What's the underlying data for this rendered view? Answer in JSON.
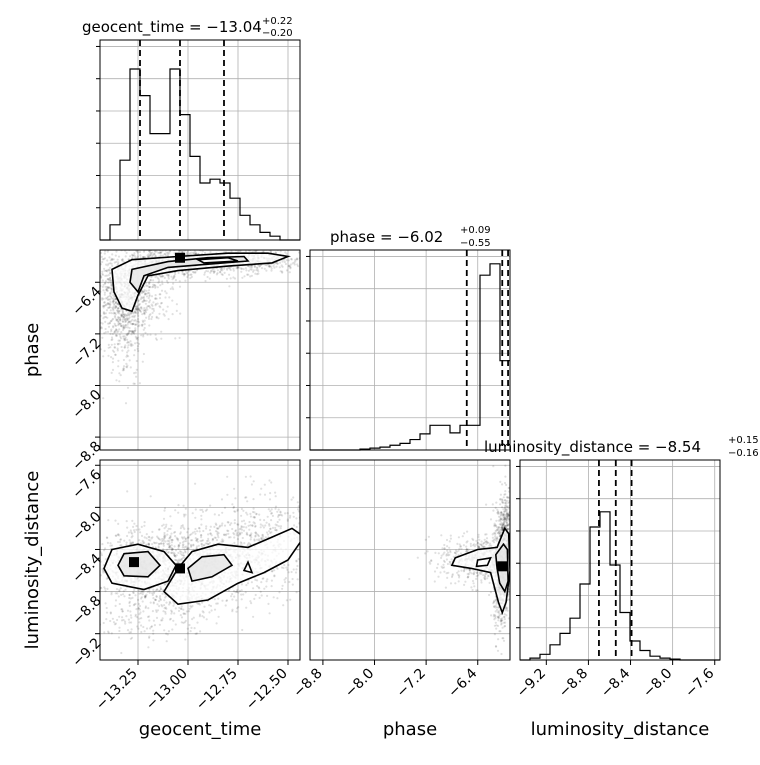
{
  "chart_data": {
    "type": "corner",
    "grid": true,
    "parameters": [
      "geocent_time",
      "phase",
      "luminosity_distance"
    ],
    "titles": [
      {
        "param": "geocent_time",
        "text": "geocent_time = −13.04",
        "sup": "+0.22",
        "sub": "−0.20"
      },
      {
        "param": "phase",
        "text": "phase = −6.02",
        "sup": "+0.09",
        "sub": "−0.55"
      },
      {
        "param": "luminosity_distance",
        "text": "luminosity_distance = −8.54",
        "sup": "+0.15",
        "sub": "−0.16"
      }
    ],
    "ranges": {
      "geocent_time": [
        -13.44,
        -12.44
      ],
      "phase": [
        -9.0,
        -5.9
      ],
      "luminosity_distance": [
        -9.45,
        -7.55
      ]
    },
    "ticks": {
      "geocent_time": {
        "values": [
          -13.25,
          -13.0,
          -12.75,
          -12.5
        ],
        "labels": [
          "−13.25",
          "−13.00",
          "−12.75",
          "−12.50"
        ]
      },
      "phase": {
        "values": [
          -8.8,
          -8.0,
          -7.2,
          -6.4
        ],
        "labels": [
          "−8.8",
          "−8.0",
          "−7.2",
          "−6.4"
        ]
      },
      "luminosity_distance": {
        "values": [
          -9.2,
          -8.8,
          -8.4,
          -8.0,
          -7.6
        ],
        "labels": [
          "−9.2",
          "−8.8",
          "−8.4",
          "−8.0",
          "−7.6"
        ]
      }
    },
    "quantiles": {
      "geocent_time": [
        -13.24,
        -13.04,
        -12.82
      ],
      "phase": [
        -6.57,
        -6.02,
        -5.93
      ],
      "luminosity_distance": [
        -8.7,
        -8.54,
        -8.39
      ]
    },
    "histograms": {
      "geocent_time": {
        "edges_start": -13.44,
        "bin_width": 0.05,
        "counts": [
          0,
          0.08,
          0.42,
          0.9,
          0.76,
          0.56,
          0.56,
          0.9,
          0.66,
          0.44,
          0.3,
          0.32,
          0.3,
          0.22,
          0.13,
          0.08,
          0.04,
          0.02,
          0,
          0
        ]
      },
      "phase": {
        "edges_start": -9.0,
        "bin_width": 0.155,
        "counts": [
          0,
          0,
          0,
          0,
          0,
          0.005,
          0.01,
          0.015,
          0.025,
          0.035,
          0.055,
          0.085,
          0.13,
          0.13,
          0.09,
          0.13,
          0.13,
          0.92,
          0.98,
          0.47
        ]
      },
      "luminosity_distance": {
        "edges_start": -9.45,
        "bin_width": 0.095,
        "counts": [
          0,
          0.01,
          0.03,
          0.08,
          0.14,
          0.22,
          0.4,
          0.7,
          0.78,
          0.5,
          0.25,
          0.1,
          0.05,
          0.02,
          0.01,
          0.005,
          0,
          0,
          0,
          0
        ]
      }
    },
    "point_clouds": [
      {
        "x": "geocent_time",
        "y": "phase",
        "centers": [
          [
            -13.3,
            -6.55,
            0.1,
            0.35,
            900
          ],
          [
            -13.1,
            -6.1,
            0.12,
            0.12,
            500
          ],
          [
            -12.85,
            -6.1,
            0.15,
            0.1,
            400
          ],
          [
            -12.6,
            -6.05,
            0.1,
            0.08,
            200
          ],
          [
            -13.32,
            -7.1,
            0.05,
            0.4,
            250
          ]
        ]
      },
      {
        "x": "geocent_time",
        "y": "luminosity_distance",
        "centers": [
          [
            -13.25,
            -8.55,
            0.1,
            0.15,
            700
          ],
          [
            -12.95,
            -8.55,
            0.15,
            0.22,
            900
          ],
          [
            -12.65,
            -8.35,
            0.15,
            0.25,
            500
          ],
          [
            -13.2,
            -9.0,
            0.15,
            0.15,
            200
          ]
        ]
      },
      {
        "x": "phase",
        "y": "luminosity_distance",
        "centers": [
          [
            -6.3,
            -8.5,
            0.35,
            0.12,
            600
          ],
          [
            -6.0,
            -8.5,
            0.08,
            0.25,
            700
          ],
          [
            -5.95,
            -8.2,
            0.05,
            0.2,
            250
          ],
          [
            -6.05,
            -8.85,
            0.05,
            0.2,
            200
          ]
        ]
      }
    ],
    "medians_2d": [
      {
        "x": "geocent_time",
        "y": "phase",
        "point": [
          -13.04,
          -6.02
        ]
      },
      {
        "x": "geocent_time",
        "y": "luminosity_distance",
        "points": [
          [
            -13.27,
            -8.52
          ],
          [
            -13.04,
            -8.58
          ]
        ]
      },
      {
        "x": "phase",
        "y": "luminosity_distance",
        "point": [
          -6.02,
          -8.56
        ]
      }
    ],
    "contours": [
      {
        "x": "geocent_time",
        "y": "phase",
        "rings": [
          [
            [
              -13.38,
              -6.2
            ],
            [
              -13.28,
              -6.05
            ],
            [
              -13.05,
              -6.0
            ],
            [
              -12.8,
              -5.95
            ],
            [
              -12.6,
              -5.95
            ],
            [
              -12.5,
              -6.0
            ],
            [
              -12.58,
              -6.1
            ],
            [
              -12.8,
              -6.15
            ],
            [
              -13.05,
              -6.22
            ],
            [
              -13.2,
              -6.3
            ],
            [
              -13.25,
              -6.6
            ],
            [
              -13.28,
              -6.85
            ],
            [
              -13.33,
              -6.8
            ],
            [
              -13.37,
              -6.55
            ]
          ],
          [
            [
              -13.28,
              -6.2
            ],
            [
              -13.1,
              -6.08
            ],
            [
              -12.9,
              -6.02
            ],
            [
              -12.72,
              -6.0
            ],
            [
              -12.7,
              -6.07
            ],
            [
              -12.9,
              -6.12
            ],
            [
              -13.1,
              -6.17
            ],
            [
              -13.22,
              -6.3
            ],
            [
              -13.25,
              -6.55
            ],
            [
              -13.29,
              -6.4
            ]
          ],
          [
            [
              -12.95,
              -6.05
            ],
            [
              -12.8,
              -6.02
            ],
            [
              -12.75,
              -6.07
            ],
            [
              -12.92,
              -6.1
            ]
          ]
        ]
      },
      {
        "x": "geocent_time",
        "y": "luminosity_distance",
        "rings": [
          [
            [
              -13.38,
              -8.4
            ],
            [
              -13.25,
              -8.35
            ],
            [
              -13.12,
              -8.42
            ],
            [
              -13.06,
              -8.55
            ],
            [
              -13.1,
              -8.7
            ],
            [
              -13.22,
              -8.78
            ],
            [
              -13.38,
              -8.72
            ],
            [
              -13.42,
              -8.58
            ]
          ],
          [
            [
              -13.32,
              -8.44
            ],
            [
              -13.2,
              -8.42
            ],
            [
              -13.14,
              -8.55
            ],
            [
              -13.2,
              -8.66
            ],
            [
              -13.32,
              -8.65
            ],
            [
              -13.35,
              -8.55
            ]
          ],
          [
            [
              -13.05,
              -8.58
            ],
            [
              -12.98,
              -8.42
            ],
            [
              -12.85,
              -8.35
            ],
            [
              -12.7,
              -8.38
            ],
            [
              -12.6,
              -8.3
            ],
            [
              -12.48,
              -8.2
            ],
            [
              -12.42,
              -8.28
            ],
            [
              -12.5,
              -8.5
            ],
            [
              -12.62,
              -8.62
            ],
            [
              -12.75,
              -8.72
            ],
            [
              -12.9,
              -8.88
            ],
            [
              -13.05,
              -8.92
            ],
            [
              -13.12,
              -8.8
            ]
          ],
          [
            [
              -13.0,
              -8.58
            ],
            [
              -12.93,
              -8.47
            ],
            [
              -12.82,
              -8.45
            ],
            [
              -12.78,
              -8.55
            ],
            [
              -12.88,
              -8.66
            ],
            [
              -12.98,
              -8.7
            ]
          ],
          [
            [
              -12.7,
              -8.52
            ],
            [
              -12.68,
              -8.62
            ],
            [
              -12.72,
              -8.6
            ]
          ]
        ]
      },
      {
        "x": "phase",
        "y": "luminosity_distance",
        "rings": [
          [
            [
              -6.75,
              -8.48
            ],
            [
              -6.4,
              -8.4
            ],
            [
              -6.1,
              -8.38
            ],
            [
              -5.98,
              -8.2
            ],
            [
              -5.92,
              -8.25
            ],
            [
              -5.9,
              -8.6
            ],
            [
              -5.96,
              -8.9
            ],
            [
              -6.02,
              -9.0
            ],
            [
              -6.08,
              -8.9
            ],
            [
              -6.2,
              -8.62
            ],
            [
              -6.5,
              -8.58
            ],
            [
              -6.8,
              -8.55
            ]
          ],
          [
            [
              -6.12,
              -8.45
            ],
            [
              -6.0,
              -8.35
            ],
            [
              -5.94,
              -8.4
            ],
            [
              -5.93,
              -8.7
            ],
            [
              -5.98,
              -8.8
            ],
            [
              -6.06,
              -8.72
            ],
            [
              -6.1,
              -8.58
            ]
          ],
          [
            [
              -6.4,
              -8.5
            ],
            [
              -6.2,
              -8.48
            ],
            [
              -6.25,
              -8.55
            ],
            [
              -6.42,
              -8.56
            ]
          ]
        ]
      }
    ]
  }
}
